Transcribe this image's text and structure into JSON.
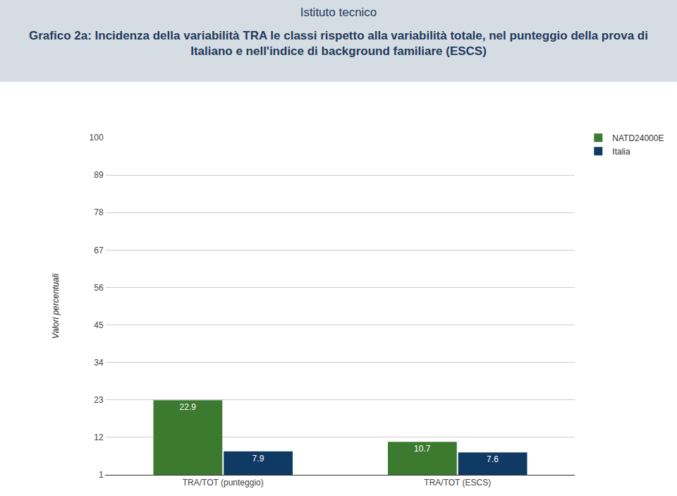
{
  "chart_data": {
    "type": "bar",
    "subtitle": "Istituto tecnico",
    "title": "Grafico 2a: Incidenza della variabilità TRA le classi rispetto alla variabilità totale, nel punteggio della prova di Italiano e nell'indice di background familiare (ESCS)",
    "y_label": "Valori percentuali",
    "categories": [
      "TRA/TOT (punteggio)",
      "TRA/TOT (ESCS)"
    ],
    "series": [
      {
        "name": "NATD24000E",
        "color": "#3b7a2f",
        "values": [
          22.9,
          10.7
        ]
      },
      {
        "name": "Italia",
        "color": "#0f3a63",
        "values": [
          7.9,
          7.6
        ]
      }
    ],
    "ylim": [
      1,
      100
    ],
    "yticks": [
      1,
      12,
      23,
      34,
      45,
      56,
      67,
      78,
      89,
      100
    ],
    "grid": true,
    "legend": "top right",
    "data_labels": true
  }
}
